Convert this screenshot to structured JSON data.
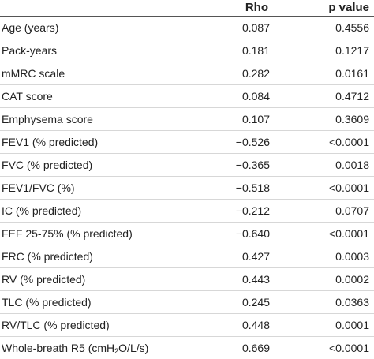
{
  "headers": {
    "variable": "",
    "rho": "Rho",
    "p": "p value"
  },
  "rows": [
    {
      "label": "Age (years)",
      "rho": "0.087",
      "p": "0.4556"
    },
    {
      "label": "Pack-years",
      "rho": "0.181",
      "p": "0.1217"
    },
    {
      "label": "mMRC scale",
      "rho": "0.282",
      "p": "0.0161"
    },
    {
      "label": "CAT score",
      "rho": "0.084",
      "p": "0.4712"
    },
    {
      "label": "Emphysema score",
      "rho": "0.107",
      "p": "0.3609"
    },
    {
      "label": "FEV1 (% predicted)",
      "rho": "−0.526",
      "p": "<0.0001"
    },
    {
      "label": "FVC (% predicted)",
      "rho": "−0.365",
      "p": "0.0018"
    },
    {
      "label": "FEV1/FVC (%)",
      "rho": "−0.518",
      "p": "<0.0001"
    },
    {
      "label": "IC (% predicted)",
      "rho": "−0.212",
      "p": "0.0707"
    },
    {
      "label": "FEF 25-75% (% predicted)",
      "rho": "−0.640",
      "p": "<0.0001"
    },
    {
      "label": "FRC (% predicted)",
      "rho": "0.427",
      "p": "0.0003"
    },
    {
      "label": "RV (% predicted)",
      "rho": "0.443",
      "p": "0.0002"
    },
    {
      "label": "TLC (% predicted)",
      "rho": "0.245",
      "p": "0.0363"
    },
    {
      "label": "RV/TLC (% predicted)",
      "rho": "0.448",
      "p": "0.0001"
    }
  ],
  "last_row": {
    "label_pre": "Whole-breath R5 (cmH",
    "label_sub": "2",
    "label_post": "O/L/s)",
    "rho": "0.669",
    "p": "<0.0001"
  }
}
